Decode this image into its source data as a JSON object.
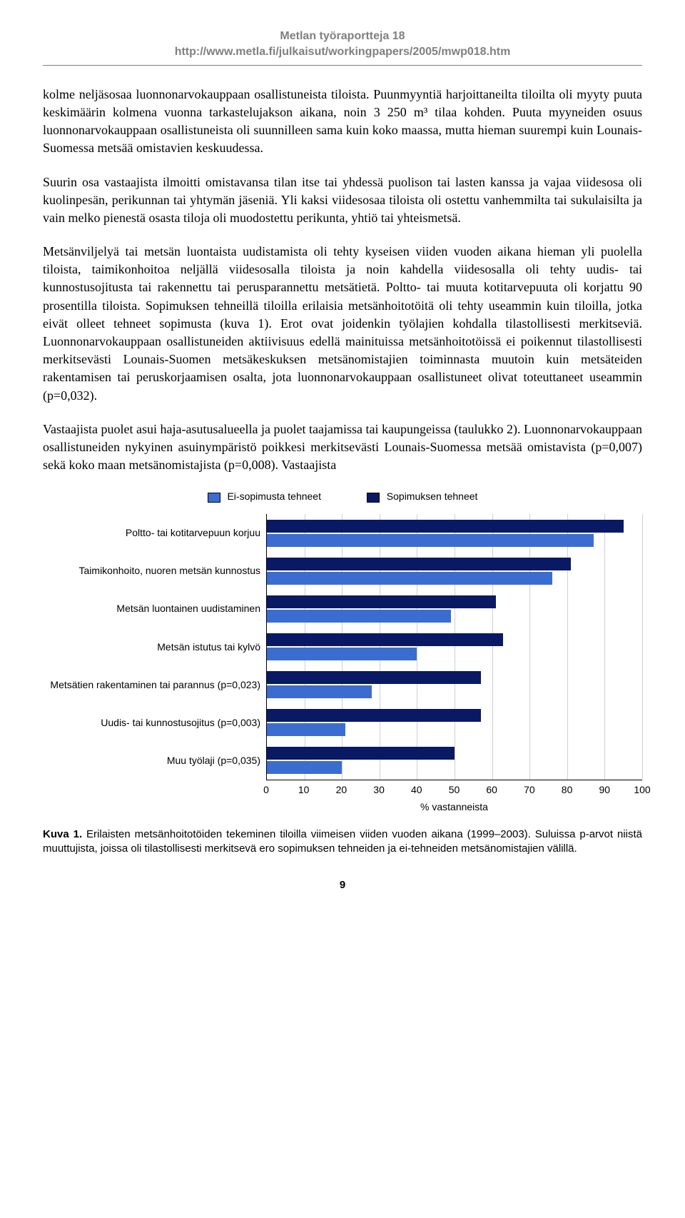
{
  "header": {
    "title": "Metlan työraportteja 18",
    "url": "http://www.metla.fi/julkaisut/workingpapers/2005/mwp018.htm"
  },
  "paragraphs": {
    "p1": "kolme neljäsosaa luonnonarvokauppaan osallistuneista tiloista. Puunmyyntiä harjoittaneilta tiloilta oli myyty puuta keskimäärin kolmena vuonna tarkastelujakson aikana, noin 3 250 m³ tilaa kohden. Puuta myyneiden osuus luonnonarvokauppaan osallistuneista oli suunnilleen sama kuin koko maassa, mutta hieman suurempi kuin Lounais-Suomessa metsää omistavien keskuudessa.",
    "p2": "Suurin osa vastaajista ilmoitti omistavansa tilan itse tai yhdessä puolison tai lasten kanssa ja vajaa viidesosa oli kuolinpesän, perikunnan tai yhtymän jäseniä. Yli kaksi viidesosaa tiloista oli ostettu vanhemmilta tai sukulaisilta ja vain melko pienestä osasta tiloja oli muodostettu perikunta, yhtiö tai yhteismetsä.",
    "p3": "Metsänviljelyä tai metsän luontaista uudistamista oli tehty kyseisen viiden vuoden aikana hieman yli puolella tiloista, taimikonhoitoa neljällä viidesosalla tiloista ja noin kahdella viidesosalla oli tehty uudis- tai kunnostusojitusta tai rakennettu tai perusparannettu metsätietä. Poltto- tai muuta kotitarve­puuta oli korjattu 90 prosentilla tiloista. Sopimuksen tehneillä tiloilla erilaisia metsänhoitotöitä oli tehty useammin kuin tiloilla, jotka eivät olleet tehneet sopimusta (kuva 1). Erot ovat joidenkin työ­lajien kohdalla tilastollisesti merkitseviä. Luonnonarvokauppaan osallistuneiden aktiivisuus edellä mainituissa metsänhoitotöissä ei poikennut tilastollisesti merkitsevästi Lounais-Suomen metsäkeskuksen metsänomistajien toiminnasta muutoin kuin metsäteiden rakentamisen tai peruskorjaamisen osalta, jota luonnonarvokauppaan osallistuneet olivat toteuttaneet useammin (p=0,032).",
    "p4": "Vastaajista puolet asui haja-asutusalueella ja puolet taajamissa tai kaupungeissa (taulukko 2). Luonnonarvokauppaan osallistuneiden nykyinen asuinympäristö poikkesi merkitsevästi Lounais-Suomessa metsää omistavista (p=0,007) sekä koko maan metsänomistajista (p=0,008). Vastaajista"
  },
  "chart": {
    "type": "bar",
    "legend": {
      "a_label": "Ei-sopimusta tehneet",
      "a_color": "#3b6dd1",
      "b_label": "Sopimuksen tehneet",
      "b_color": "#0a1964"
    },
    "xmax": 100,
    "xlabel": "% vastanneista",
    "xtick_step": 10,
    "grid_color": "#d0d0d0",
    "categories": [
      {
        "label": "Poltto- tai kotitarvepuun korjuu",
        "ei": 87,
        "sop": 95
      },
      {
        "label": "Taimikonhoito, nuoren metsän kunnostus",
        "ei": 76,
        "sop": 81
      },
      {
        "label": "Metsän luontainen uudistaminen",
        "ei": 49,
        "sop": 61
      },
      {
        "label": "Metsän istutus tai kylvö",
        "ei": 40,
        "sop": 63
      },
      {
        "label": "Metsätien rakentaminen tai parannus (p=0,023)",
        "ei": 28,
        "sop": 57
      },
      {
        "label": "Uudis- tai kunnostusojitus (p=0,003)",
        "ei": 21,
        "sop": 57
      },
      {
        "label": "Muu työlaji (p=0,035)",
        "ei": 20,
        "sop": 50
      }
    ]
  },
  "caption": {
    "lead": "Kuva 1.",
    "text": " Erilaisten metsänhoitotöiden tekeminen tiloilla viimeisen viiden vuoden aikana (1999–2003). Suluissa p-arvot niistä muuttujista, joissa oli tilastollisesti merkitsevä ero sopimuksen tehneiden ja ei-tehneiden metsänomistajien välillä."
  },
  "page_number": "9"
}
